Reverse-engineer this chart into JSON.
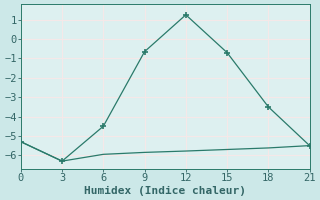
{
  "line1_x": [
    0,
    3,
    6,
    9,
    12,
    15,
    18,
    21
  ],
  "line1_y": [
    -5.3,
    -6.3,
    -4.5,
    -0.65,
    1.25,
    -0.7,
    -3.5,
    -5.5
  ],
  "line2_x": [
    0,
    3,
    6,
    9,
    12,
    15,
    18,
    21
  ],
  "line2_y": [
    -5.3,
    -6.3,
    -5.95,
    -5.85,
    -5.78,
    -5.7,
    -5.62,
    -5.5
  ],
  "line_color": "#2a7a6a",
  "bg_color": "#cce8e8",
  "plot_bg_color": "#ddf0f0",
  "grid_color": "#f5e8e8",
  "xlabel": "Humidex (Indice chaleur)",
  "xlim": [
    0,
    21
  ],
  "ylim": [
    -6.7,
    1.8
  ],
  "xticks": [
    0,
    3,
    6,
    9,
    12,
    15,
    18,
    21
  ],
  "yticks": [
    1,
    0,
    -1,
    -2,
    -3,
    -4,
    -5,
    -6
  ],
  "font_color": "#336666",
  "tick_fontsize": 7.5,
  "label_fontsize": 8
}
